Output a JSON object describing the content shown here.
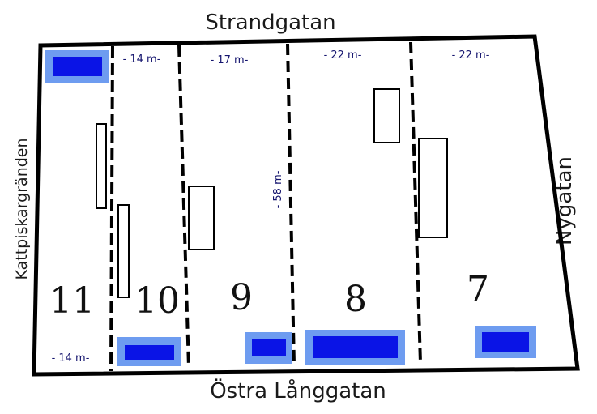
{
  "streets": {
    "north": "Strandgatan",
    "south": "Östra Långgatan",
    "west": "Kattpiskargränden",
    "east": "Nygatan"
  },
  "plots": [
    {
      "number": "11",
      "frontage": "- 14 m-"
    },
    {
      "number": "10",
      "frontage": "- 14 m-"
    },
    {
      "number": "9",
      "frontage": "- 17 m-"
    },
    {
      "number": "8",
      "frontage": "- 22 m-"
    },
    {
      "number": "7",
      "frontage": "- 22 m-"
    }
  ],
  "block_depth": "- 58 m-",
  "colors": {
    "outline": "#000000",
    "building_fill": "#0a14e6",
    "building_halo": "#6e9cf0"
  }
}
